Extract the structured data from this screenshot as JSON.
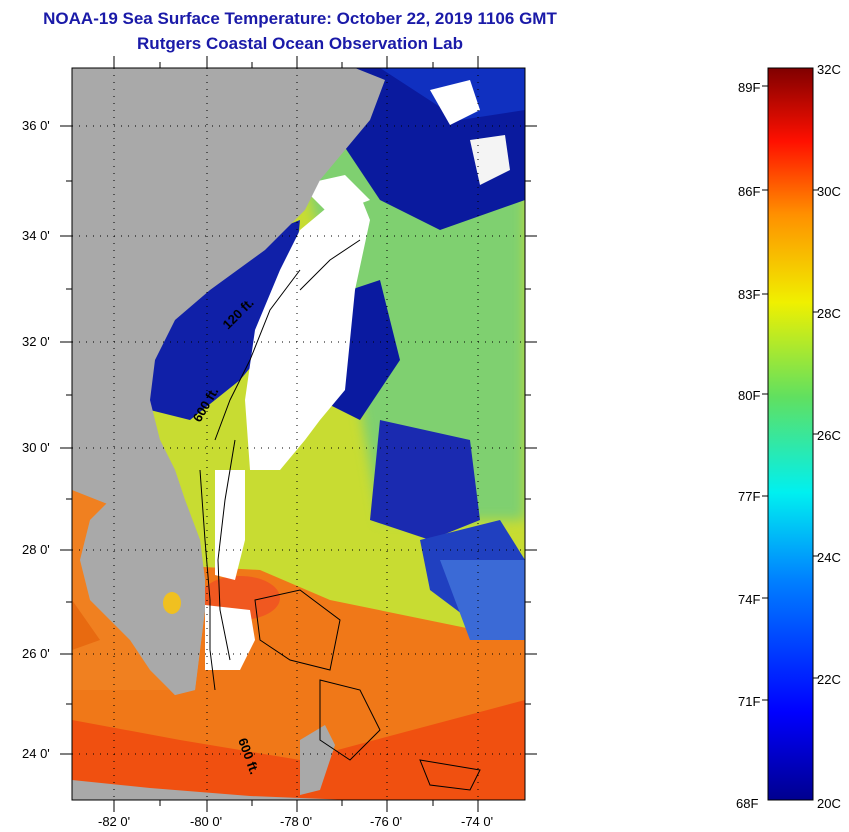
{
  "header": {
    "title_line1": "NOAA-19 Sea Surface Temperature:  October 22, 2019 1106 GMT",
    "title_line2": "Rutgers Coastal Ocean Observation Lab"
  },
  "map": {
    "lat_labels": [
      "36 0'",
      "34 0'",
      "32 0'",
      "30 0'",
      "28 0'",
      "26 0'",
      "24 0'"
    ],
    "lon_labels": [
      "-82 0'",
      "-80 0'",
      "-78 0'",
      "-76 0'",
      "-74 0'"
    ],
    "contour_labels": [
      "120 ft.",
      "600 ft.",
      "600 ft."
    ],
    "colors": {
      "land": "#a9a9a9",
      "cloud": "#ffffff",
      "cold_water": "#0a1aa0",
      "warm_water": "#e8701a"
    }
  },
  "colorbar": {
    "fahrenheit_labels": [
      "89F",
      "86F",
      "83F",
      "80F",
      "77F",
      "74F",
      "71F",
      "68F"
    ],
    "celsius_labels": [
      "32C",
      "30C",
      "28C",
      "26C",
      "24C",
      "22C",
      "20C"
    ],
    "range_c": [
      20,
      32
    ]
  }
}
